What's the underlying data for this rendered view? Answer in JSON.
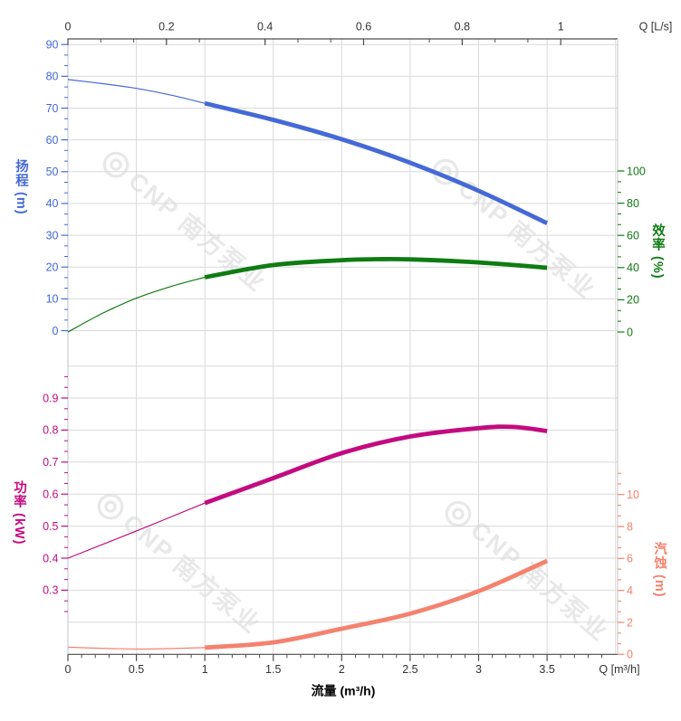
{
  "page": {
    "background": "#ffffff"
  },
  "chart_data": {
    "type": "line",
    "title": "",
    "description": "Pump performance curves: head, efficiency, power and NPSH versus flow",
    "axes": {
      "x_top": {
        "label": "Q [L/s]",
        "ticks": [
          "0",
          "0.2",
          "0.4",
          "0.6",
          "0.8",
          "1"
        ],
        "min": 0,
        "max": 1.115,
        "color": "#333333"
      },
      "x_bottom": {
        "label": "Q [m³/h]",
        "title": "流量 (m³/h)",
        "ticks": [
          "0",
          "0.5",
          "1",
          "1.5",
          "2",
          "2.5",
          "3",
          "3.5"
        ],
        "min": 0,
        "max": 4.015,
        "minor_step": 0.1,
        "color": "#333333"
      },
      "y_head": {
        "title": "扬程 (m)",
        "ticks": [
          "0",
          "10",
          "20",
          "30",
          "40",
          "50",
          "60",
          "70",
          "80",
          "90"
        ],
        "min": 0,
        "max": 90,
        "side": "left",
        "color": "#4569d6"
      },
      "y_eff": {
        "title": "效率 (%)",
        "ticks": [
          "0",
          "20",
          "40",
          "60",
          "80",
          "100"
        ],
        "min": 0,
        "max": 100,
        "side": "right",
        "color": "#0f7c13"
      },
      "y_power": {
        "title": "功率 (kW)",
        "ticks": [
          "0.3",
          "0.4",
          "0.5",
          "0.6",
          "0.7",
          "0.8",
          "0.9"
        ],
        "min": 0.3,
        "max": 0.9,
        "side": "left",
        "color": "#c30b80"
      },
      "y_npsh": {
        "title": "汽蚀 (m)",
        "ticks": [
          "0",
          "2",
          "4",
          "6",
          "8",
          "10"
        ],
        "min": 0,
        "max": 10,
        "side": "right",
        "color": "#f4826e"
      }
    },
    "grid": {
      "on": true,
      "color": "#d9d9d9",
      "x_step_m3h": 0.5,
      "head_step_m": 10,
      "power_step_kw": 0.1
    },
    "operating_range_m3h": [
      1.0,
      3.5
    ],
    "series": [
      {
        "name": "head",
        "axis": "head",
        "color": "#4569d6",
        "bold_from": 1,
        "points": [
          [
            0,
            79
          ],
          [
            0.25,
            77.7
          ],
          [
            0.5,
            76.2
          ],
          [
            0.75,
            74.1
          ],
          [
            1,
            71.5
          ],
          [
            1.5,
            66.3
          ],
          [
            2,
            60.2
          ],
          [
            2.5,
            52.8
          ],
          [
            3,
            44.0
          ],
          [
            3.5,
            33.8
          ]
        ]
      },
      {
        "name": "efficiency",
        "axis": "eff",
        "color": "#0f7c13",
        "bold_from": 1,
        "points": [
          [
            0,
            0
          ],
          [
            0.25,
            11.5
          ],
          [
            0.5,
            21
          ],
          [
            0.75,
            28.2
          ],
          [
            1,
            34
          ],
          [
            1.5,
            41.6
          ],
          [
            2,
            44.6
          ],
          [
            2.25,
            45.2
          ],
          [
            2.5,
            45.1
          ],
          [
            3,
            43.2
          ],
          [
            3.5,
            39.9
          ]
        ]
      },
      {
        "name": "power",
        "axis": "pow",
        "color": "#c30b80",
        "bold_from": 1,
        "points": [
          [
            0,
            0.4
          ],
          [
            0.5,
            0.485
          ],
          [
            1,
            0.572
          ],
          [
            1.5,
            0.65
          ],
          [
            2,
            0.728
          ],
          [
            2.5,
            0.78
          ],
          [
            3,
            0.806
          ],
          [
            3.25,
            0.81
          ],
          [
            3.5,
            0.797
          ]
        ]
      },
      {
        "name": "npsh",
        "axis": "npsh",
        "color": "#f4826e",
        "bold_from": 1,
        "points": [
          [
            0,
            0.45
          ],
          [
            0.5,
            0.33
          ],
          [
            1,
            0.42
          ],
          [
            1.5,
            0.75
          ],
          [
            2,
            1.6
          ],
          [
            2.5,
            2.55
          ],
          [
            3,
            3.95
          ],
          [
            3.5,
            5.85
          ]
        ]
      }
    ],
    "watermark": {
      "logo": "◎",
      "text": "CNP 南方泵业"
    }
  }
}
